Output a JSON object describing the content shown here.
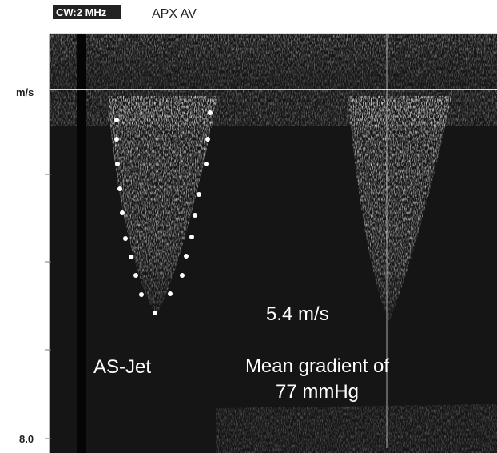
{
  "header": {
    "mode_label": "CW:2 MHz",
    "view_label": "APX AV"
  },
  "axis": {
    "unit_label": "m/s",
    "bottom_label": "8.0"
  },
  "annotations": {
    "jet_label": "AS-Jet",
    "peak_velocity": "5.4 m/s",
    "gradient_line1": "Mean gradient of",
    "gradient_line2": "77 mmHg"
  }
}
